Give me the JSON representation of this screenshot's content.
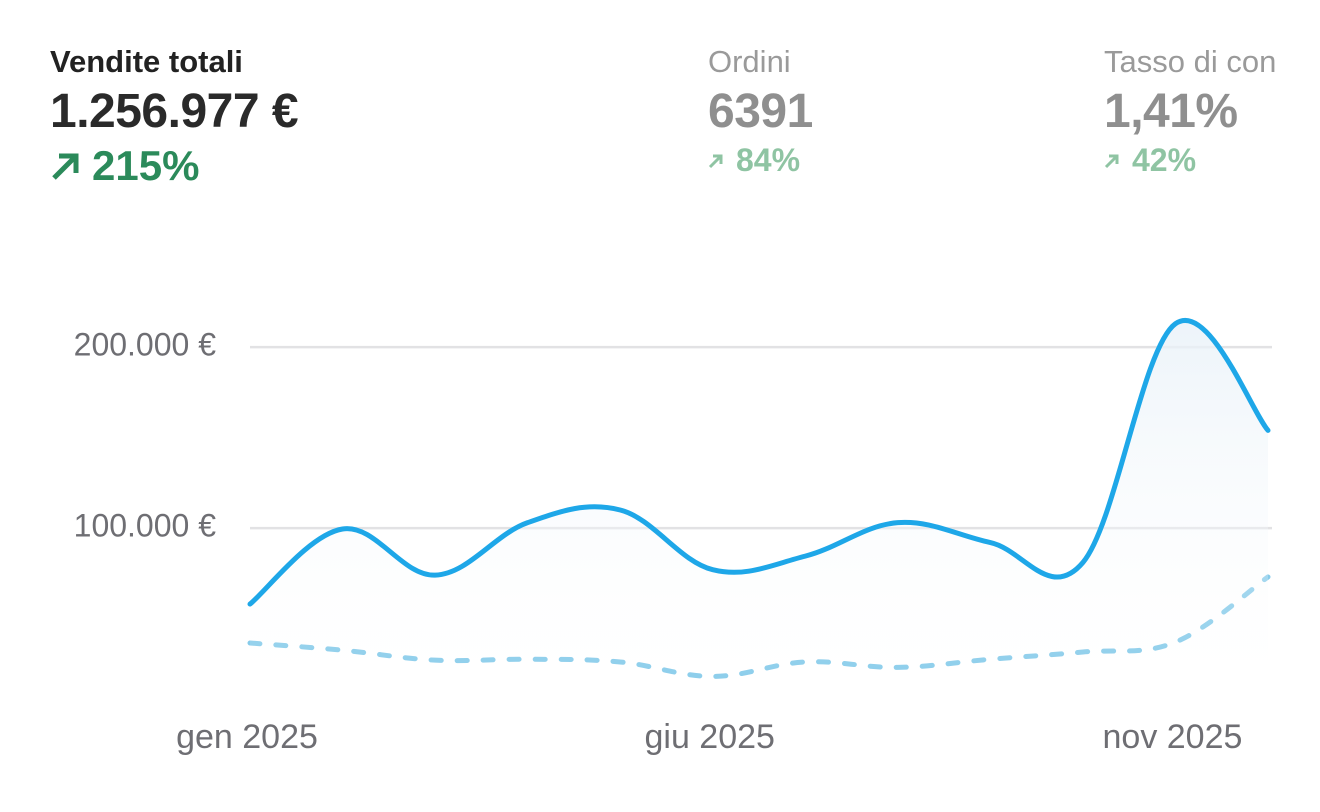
{
  "kpis": [
    {
      "title": "Vendite totali",
      "value": "1.256.977 €",
      "change": "215%"
    },
    {
      "title": "Ordini",
      "value": "6391",
      "change": "84%"
    },
    {
      "title": "Tasso di con",
      "value": "1,41%",
      "change": "42%"
    }
  ],
  "chart_data": {
    "type": "line",
    "categories": [
      "gen 2025",
      null,
      null,
      null,
      null,
      "giu 2025",
      null,
      null,
      null,
      null,
      "nov 2025",
      null
    ],
    "series": [
      {
        "color": "#1ea7e8",
        "style": "solid",
        "area": true,
        "values": [
          58000,
          99500,
          74000,
          103000,
          110000,
          77000,
          84500,
          103000,
          92000,
          81000,
          213000,
          154000
        ]
      },
      {
        "color": "#86cbea",
        "style": "dashed",
        "values": [
          36500,
          32500,
          27000,
          27500,
          26000,
          18000,
          26000,
          23000,
          27500,
          31500,
          37000,
          73000
        ]
      }
    ],
    "ylim": [
      0,
      220000
    ],
    "yticks": [
      {
        "value": 100000,
        "label": "100.000 €"
      },
      {
        "value": 200000,
        "label": "200.000 €"
      }
    ],
    "grid": true
  }
}
